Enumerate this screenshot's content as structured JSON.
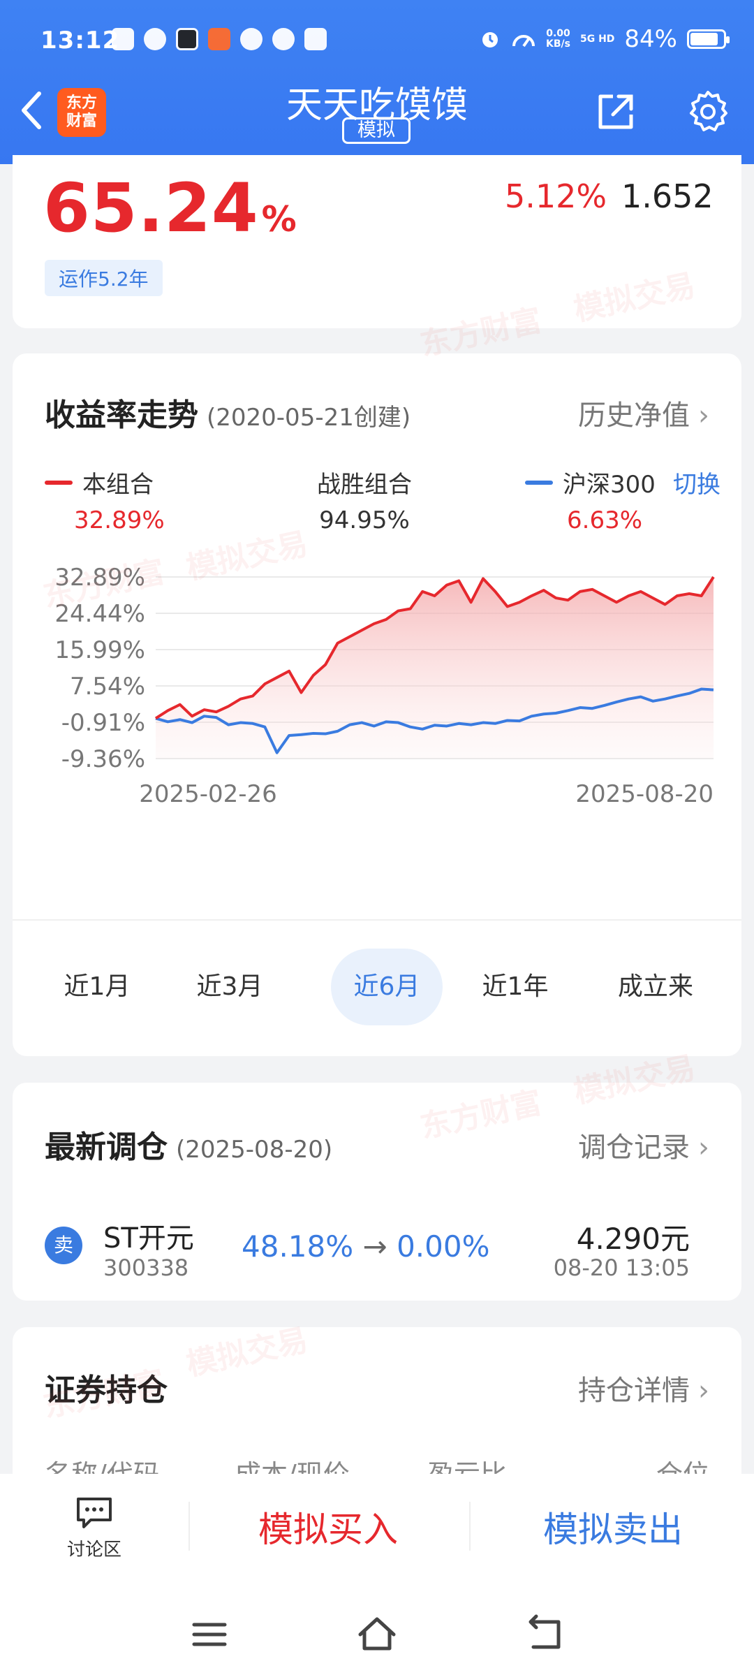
{
  "status_bar": {
    "time": "13:12",
    "net_speed": "0.00",
    "net_unit": "KB/s",
    "signal": "5G HD",
    "battery": "84%",
    "battery_level": 0.84
  },
  "header": {
    "title": "天天吃馍馍",
    "tag": "模拟",
    "logo_line1": "东方",
    "logo_line2": "财富"
  },
  "summary": {
    "total_return_value": "65.24",
    "total_return_unit": "%",
    "daily_change": "5.12%",
    "nav": "1.652",
    "operation": "运作5.2年"
  },
  "trend": {
    "title": "收益率走势",
    "created": "(2020-05-21创建)",
    "history_link": "历史净值",
    "legend": {
      "portfolio_name": "本组合",
      "portfolio_value": "32.89%",
      "beat_name": "战胜组合",
      "beat_value": "94.95%",
      "index_name": "沪深300",
      "index_value": "6.63%",
      "switch_label": "切换"
    },
    "periods": [
      "近1月",
      "近3月",
      "近6月",
      "近1年",
      "成立来"
    ],
    "active_period": 2
  },
  "chart_data": {
    "type": "line",
    "ylim": [
      -9.36,
      32.89
    ],
    "y_ticks": [
      "32.89%",
      "24.44%",
      "15.99%",
      "7.54%",
      "-0.91%",
      "-9.36%"
    ],
    "x_start": "2025-02-26",
    "x_end": "2025-08-20",
    "colors": {
      "portfolio": "#e6282d",
      "index": "#3a7be0"
    },
    "series": [
      {
        "name": "本组合",
        "values": [
          0.0,
          1.8,
          3.2,
          0.5,
          2.0,
          1.5,
          2.8,
          4.5,
          5.2,
          8.0,
          9.5,
          11.0,
          6.0,
          10.0,
          12.5,
          17.5,
          19.0,
          20.5,
          22.0,
          23.0,
          25.0,
          25.5,
          29.5,
          28.5,
          31.0,
          32.0,
          27.0,
          32.5,
          29.5,
          26.0,
          27.0,
          28.5,
          29.8,
          28.0,
          27.5,
          29.5,
          30.0,
          28.5,
          27.0,
          28.5,
          29.5,
          28.0,
          26.5,
          28.5,
          29.0,
          28.5,
          32.89
        ]
      },
      {
        "name": "沪深300",
        "values": [
          0.0,
          -0.8,
          -0.3,
          -1.0,
          0.5,
          0.2,
          -1.5,
          -1.0,
          -1.2,
          -2.0,
          -8.0,
          -4.0,
          -3.8,
          -3.5,
          -3.6,
          -3.0,
          -1.5,
          -1.0,
          -1.8,
          -0.8,
          -1.0,
          -2.0,
          -2.5,
          -1.6,
          -1.8,
          -1.2,
          -1.5,
          -1.0,
          -1.2,
          -0.5,
          -0.6,
          0.5,
          1.0,
          1.2,
          1.8,
          2.5,
          2.3,
          3.0,
          3.8,
          4.5,
          5.0,
          4.0,
          4.5,
          5.2,
          5.8,
          6.8,
          6.63
        ]
      }
    ]
  },
  "rebalance": {
    "title": "最新调仓",
    "date": "(2025-08-20)",
    "link": "调仓记录",
    "action": "卖",
    "stock_name": "ST开元",
    "stock_code": "300338",
    "ratio_from": "48.18%",
    "arrow": "→",
    "ratio_to": "0.00%",
    "price": "4.290元",
    "time": "08-20  13:05"
  },
  "holdings": {
    "title": "证券持仓",
    "link": "持仓详情",
    "columns": [
      "名称/代码",
      "成本/现价",
      "盈亏比",
      "仓位"
    ]
  },
  "watermarks": [
    "东方财富",
    "模拟交易"
  ],
  "bottom_bar": {
    "discuss": "讨论区",
    "buy": "模拟买入",
    "sell": "模拟卖出"
  }
}
